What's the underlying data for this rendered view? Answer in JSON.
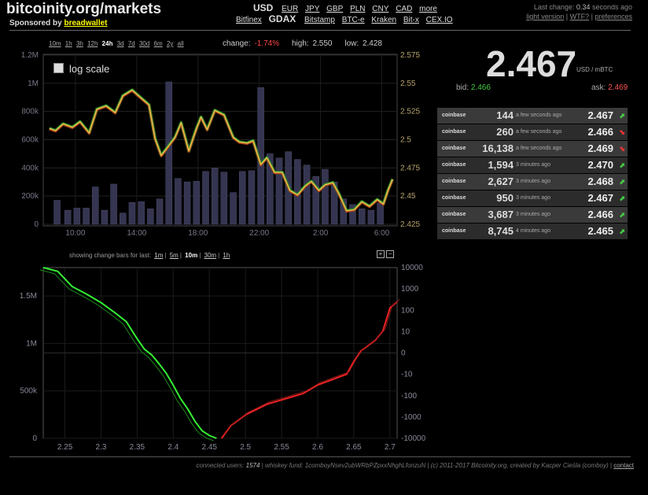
{
  "header": {
    "site_title": "bitcoinity.org/markets",
    "sponsor_label": "Sponsored by",
    "sponsor_name": "breadwallet",
    "currency_selected": "USD",
    "currencies": [
      "EUR",
      "JPY",
      "GBP",
      "PLN",
      "CNY",
      "CAD",
      "more"
    ],
    "exchange_selected": "GDAX",
    "exchanges": [
      "Bitfinex",
      "Bitstamp",
      "BTC-e",
      "Kraken",
      "Bit-x",
      "CEX.IO"
    ],
    "last_change_label": "Last change:",
    "last_change_value": "0.34",
    "last_change_suffix": "seconds ago",
    "light_version": "light version",
    "wtf": "WTF?",
    "preferences": "preferences"
  },
  "controls": {
    "time_ranges": [
      "10m",
      "1h",
      "3h",
      "12h",
      "24h",
      "3d",
      "7d",
      "30d",
      "6m",
      "2y",
      "all"
    ],
    "active_range": "24h",
    "change_label": "change:",
    "change_value": "-1.74%",
    "high_label": "high:",
    "high_value": "2.550",
    "low_label": "low:",
    "low_value": "2.428",
    "log_scale_label": "log scale",
    "change_bars_label": "showing change bars for last:",
    "change_bars_options": [
      "1m",
      "5m",
      "10m",
      "30m",
      "1h"
    ],
    "change_bars_active": "10m",
    "zoom_in": "+",
    "zoom_out": "−"
  },
  "ticker": {
    "price": "2.467",
    "unit": "USD / mBTC",
    "bid_label": "bid:",
    "bid_value": "2.466",
    "ask_label": "ask:",
    "ask_value": "2.469",
    "colors": {
      "up": "#44cc44",
      "down": "#ee3333"
    }
  },
  "trades": [
    {
      "exchange": "coinbase",
      "amount": "144",
      "ago": "a few seconds ago",
      "price": "2.467",
      "dir": "up"
    },
    {
      "exchange": "coinbase",
      "amount": "260",
      "ago": "a few seconds ago",
      "price": "2.466",
      "dir": "down"
    },
    {
      "exchange": "coinbase",
      "amount": "16,138",
      "ago": "a few seconds ago",
      "price": "2.469",
      "dir": "down"
    },
    {
      "exchange": "coinbase",
      "amount": "1,594",
      "ago": "3 minutes ago",
      "price": "2.470",
      "dir": "up"
    },
    {
      "exchange": "coinbase",
      "amount": "2,627",
      "ago": "3 minutes ago",
      "price": "2.468",
      "dir": "up"
    },
    {
      "exchange": "coinbase",
      "amount": "950",
      "ago": "3 minutes ago",
      "price": "2.467",
      "dir": "up"
    },
    {
      "exchange": "coinbase",
      "amount": "3,687",
      "ago": "3 minutes ago",
      "price": "2.466",
      "dir": "up"
    },
    {
      "exchange": "coinbase",
      "amount": "8,745",
      "ago": "4 minutes ago",
      "price": "2.465",
      "dir": "up"
    }
  ],
  "chart_data": [
    {
      "type": "line",
      "x_ticks": [
        "10:00",
        "14:00",
        "18:00",
        "22:00",
        "2:00",
        "6:00"
      ],
      "x_hours": [
        10,
        14,
        18,
        22,
        26,
        30
      ],
      "x_range_hours": [
        7.9,
        31.0
      ],
      "price_axis_ticks": [
        "2.575",
        "2.55",
        "2.525",
        "2.5",
        "2.475",
        "2.45",
        "2.425"
      ],
      "ylim_price": [
        2.425,
        2.575
      ],
      "volume_axis_ticks": [
        "1.2M",
        "1M",
        "800k",
        "600k",
        "400k",
        "200k",
        "0"
      ],
      "ylim_volume": [
        0,
        1200000
      ],
      "price_series": {
        "hour": [
          8.3,
          8.7,
          9.2,
          9.8,
          10.3,
          10.9,
          11.4,
          12.0,
          12.6,
          13.1,
          13.7,
          14.2,
          14.8,
          15.2,
          15.6,
          16.0,
          16.5,
          16.9,
          17.4,
          17.9,
          18.2,
          18.6,
          19.1,
          19.7,
          20.3,
          20.7,
          21.2,
          21.6,
          22.1,
          22.5,
          23.0,
          23.5,
          24.0,
          24.5,
          25.0,
          25.4,
          25.9,
          26.3,
          26.8,
          27.2,
          27.7,
          28.2,
          28.7,
          29.2,
          29.7,
          30.1,
          30.4,
          30.7
        ],
        "price": [
          2.51,
          2.508,
          2.514,
          2.511,
          2.516,
          2.506,
          2.527,
          2.53,
          2.524,
          2.539,
          2.544,
          2.538,
          2.531,
          2.501,
          2.486,
          2.493,
          2.502,
          2.515,
          2.49,
          2.51,
          2.52,
          2.509,
          2.526,
          2.522,
          2.502,
          2.498,
          2.497,
          2.499,
          2.478,
          2.484,
          2.471,
          2.471,
          2.455,
          2.451,
          2.459,
          2.463,
          2.455,
          2.46,
          2.462,
          2.452,
          2.437,
          2.438,
          2.445,
          2.441,
          2.447,
          2.443,
          2.455,
          2.465
        ]
      },
      "volume_series": {
        "hour": [
          8.8,
          9.5,
          10.1,
          10.7,
          11.3,
          11.9,
          12.5,
          13.1,
          13.7,
          14.3,
          14.9,
          15.5,
          16.1,
          16.7,
          17.3,
          17.9,
          18.5,
          19.1,
          19.7,
          20.3,
          20.9,
          21.5,
          22.1,
          22.7,
          23.3,
          23.9,
          24.5,
          25.1,
          25.7,
          26.3,
          26.9,
          27.5,
          28.1,
          28.7,
          29.3,
          29.9
        ],
        "volume": [
          170000,
          100000,
          115000,
          115000,
          265000,
          100000,
          285000,
          80000,
          155000,
          160000,
          110000,
          180000,
          1010000,
          325000,
          300000,
          305000,
          375000,
          400000,
          370000,
          225000,
          375000,
          380000,
          970000,
          500000,
          470000,
          515000,
          460000,
          420000,
          340000,
          390000,
          300000,
          180000,
          140000,
          110000,
          100000,
          150000
        ]
      }
    },
    {
      "type": "area",
      "xlim": [
        2.22,
        2.71
      ],
      "x_ticks": [
        "2.25",
        "2.3",
        "2.35",
        "2.4",
        "2.45",
        "2.5",
        "2.55",
        "2.6",
        "2.65",
        "2.7"
      ],
      "left_axis_ticks": [
        "1.5M",
        "1M",
        "500k",
        "0"
      ],
      "ylim_left": [
        0,
        1800000
      ],
      "right_axis_ticks": [
        "10000",
        "1000",
        "100",
        "10",
        "0",
        "-10",
        "-100",
        "-1000",
        "-10000"
      ],
      "bids": {
        "x": [
          2.22,
          2.24,
          2.26,
          2.28,
          2.3,
          2.32,
          2.335,
          2.35,
          2.36,
          2.37,
          2.38,
          2.39,
          2.4,
          2.41,
          2.42,
          2.43,
          2.44,
          2.45,
          2.46
        ],
        "y": [
          1800000,
          1760000,
          1600000,
          1520000,
          1430000,
          1320000,
          1230000,
          1050000,
          940000,
          880000,
          790000,
          690000,
          560000,
          420000,
          310000,
          180000,
          80000,
          30000,
          0
        ]
      },
      "asks": {
        "x": [
          2.467,
          2.48,
          2.5,
          2.53,
          2.56,
          2.58,
          2.6,
          2.62,
          2.64,
          2.65,
          2.66,
          2.68,
          2.69,
          2.7,
          2.71
        ],
        "log_y": [
          -4,
          -3.4,
          -2.9,
          -2.4,
          -2.1,
          -1.9,
          -1.5,
          -1.25,
          -1.0,
          -0.4,
          0.1,
          0.6,
          1.0,
          2.1,
          2.4
        ]
      },
      "colors": {
        "bids": "#33ee33",
        "asks": "#ee2222"
      }
    }
  ],
  "footer": {
    "connected_label": "connected users:",
    "connected_value": "1574",
    "whiskey_label": "| whiskey fund:",
    "whiskey_value": "1comboyNsev2ubWRbPZpxxNhghLfonzuN",
    "credit": "| (c) 2011-2017 Bitcoinity.org, created by Kacper Cieśla (comboy) |",
    "contact": "contact"
  }
}
